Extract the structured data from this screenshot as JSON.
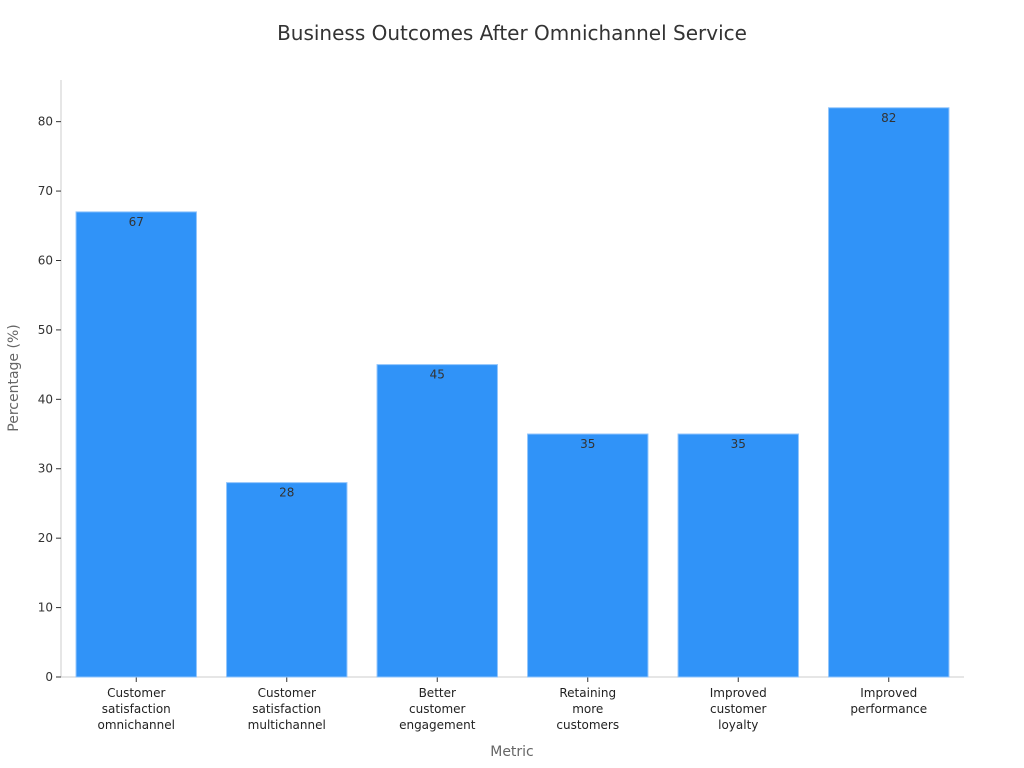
{
  "chart_data": {
    "type": "bar",
    "title": "Business Outcomes After Omnichannel Service",
    "xlabel": "Metric",
    "ylabel": "Percentage (%)",
    "categories": [
      [
        "Customer",
        "satisfaction",
        "omnichannel"
      ],
      [
        "Customer",
        "satisfaction",
        "multichannel"
      ],
      [
        "Better",
        "customer",
        "engagement"
      ],
      [
        "Retaining",
        "more",
        "customers"
      ],
      [
        "Improved",
        "customer",
        "loyalty"
      ],
      [
        "Improved",
        "performance"
      ]
    ],
    "values": [
      67,
      28,
      45,
      35,
      35,
      82
    ],
    "data_labels": [
      "67",
      "28",
      "45",
      "35",
      "35",
      "82"
    ],
    "ylim": [
      0,
      86
    ],
    "yticks": [
      0,
      10,
      20,
      30,
      40,
      50,
      60,
      70,
      80
    ],
    "grid": false,
    "legend": "none",
    "bar_color": "#3093f8"
  }
}
